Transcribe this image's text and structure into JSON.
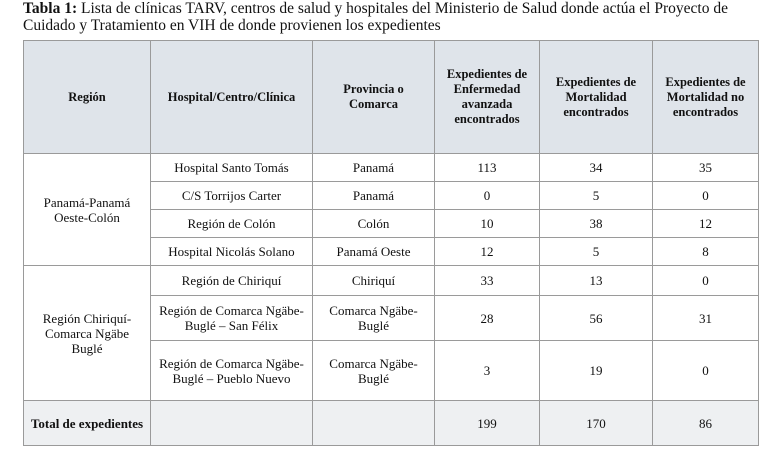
{
  "caption": {
    "label": "Tabla 1:",
    "text": "Lista de clínicas TARV, centros de salud y hospitales del Ministerio de Salud donde actúa el Proyecto de Cuidado y Tratamiento en VIH de donde provienen los expedientes"
  },
  "table": {
    "header": [
      "Región",
      "Hospital/Centro/Clínica",
      "Provincia o Comarca",
      "Expedientes de Enfermedad avanzada encontrados",
      "Expedientes de Mortalidad encontrados",
      "Expedientes de Mortalidad no encontrados"
    ],
    "groups": [
      {
        "region": "Panamá-Panamá Oeste-Colón",
        "rows": [
          [
            "Hospital Santo Tomás",
            "Panamá",
            113,
            34,
            35
          ],
          [
            "C/S Torrijos Carter",
            "Panamá",
            0,
            5,
            0
          ],
          [
            "Región de Colón",
            "Colón",
            10,
            38,
            12
          ],
          [
            "Hospital Nicolás Solano",
            "Panamá Oeste",
            12,
            5,
            8
          ]
        ]
      },
      {
        "region": "Región Chiriquí-Comarca Ngäbe Buglé",
        "rows": [
          [
            "Región de Chiriquí",
            "Chiriquí",
            33,
            13,
            0
          ],
          [
            "Región de Comarca Ngäbe-Buglé – San Félix",
            "Comarca Ngäbe-Buglé",
            28,
            56,
            31
          ],
          [
            "Región de Comarca Ngäbe-Buglé – Pueblo Nuevo",
            "Comarca Ngäbe-Buglé",
            3,
            19,
            0
          ]
        ]
      }
    ],
    "total": {
      "label": "Total de expedientes",
      "values": [
        199,
        170,
        86
      ]
    }
  }
}
